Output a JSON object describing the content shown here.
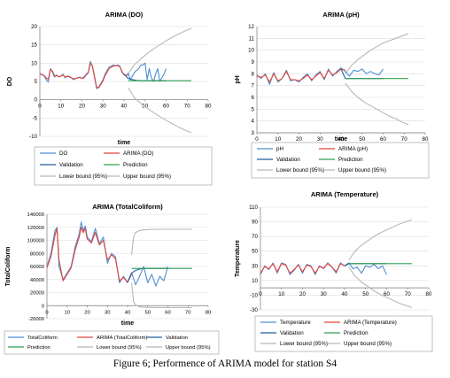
{
  "caption": "Figure 6;  Performence of ARIMA model for station S4",
  "colors": {
    "observed": "#4f8fd0",
    "arima": "#e0433d",
    "validation": "#1f5f9f",
    "prediction": "#2fa050",
    "bounds": "#b8b8b8",
    "grid": "#dcdcdc"
  },
  "chart_data": [
    {
      "type": "line",
      "title": "ARIMA (DO)",
      "xlabel": "time",
      "ylabel": "DO",
      "xlim": [
        0,
        80
      ],
      "ylim": [
        -10,
        20
      ],
      "xticks": [
        "0",
        "10",
        "20",
        "30",
        "40",
        "50",
        "60",
        "70",
        "80"
      ],
      "yticks": [
        "-10",
        "-5",
        "0",
        "5",
        "10",
        "15",
        "20"
      ],
      "legend": [
        "DO",
        "ARIMA (DO)",
        "Validation",
        "Prediction",
        "Lower bound (95%)",
        "Upper bound (95%)"
      ],
      "series": [
        {
          "name": "DO",
          "x": [
            0,
            1,
            2,
            3,
            4,
            5,
            6,
            7,
            8,
            9,
            10,
            11,
            12,
            13,
            14,
            15,
            16,
            17,
            18,
            19,
            20,
            21,
            22,
            23,
            24,
            25,
            26,
            27,
            28,
            29,
            30,
            31,
            32,
            33,
            34,
            35,
            36,
            37,
            38,
            39,
            40,
            41,
            42,
            43,
            44,
            45,
            46,
            47,
            48,
            49,
            50,
            51,
            52,
            53,
            54,
            55,
            56,
            57,
            58,
            59,
            60
          ],
          "y": [
            7.2,
            6.8,
            6.5,
            5.5,
            4.8,
            8.5,
            7.5,
            6.2,
            6.8,
            6.2,
            6.5,
            7.0,
            6.0,
            6.5,
            6.2,
            6.0,
            5.5,
            5.8,
            6.0,
            6.2,
            5.8,
            6.2,
            7.0,
            7.5,
            10.5,
            9.0,
            6.0,
            3.0,
            3.5,
            4.5,
            5.5,
            7.0,
            8.0,
            9.0,
            9.2,
            9.5,
            9.3,
            9.5,
            9.2,
            7.5,
            7.0,
            6.5,
            7.2,
            5.5,
            6.5,
            7.5,
            8.0,
            8.5,
            9.5,
            9.5,
            10.0,
            5.5,
            8.5,
            6.0,
            5.0,
            7.0,
            8.5,
            5.0,
            6.0,
            7.0,
            8.5
          ]
        },
        {
          "name": "ARIMA (DO)",
          "x": [
            0,
            1,
            2,
            3,
            4,
            5,
            6,
            7,
            8,
            9,
            10,
            11,
            12,
            13,
            14,
            15,
            16,
            17,
            18,
            19,
            20,
            21,
            22,
            23,
            24,
            25,
            26,
            27,
            28,
            29,
            30,
            31,
            32,
            33,
            34,
            35,
            36,
            37,
            38,
            39,
            40,
            41,
            42
          ],
          "y": [
            7.0,
            6.9,
            6.6,
            6.0,
            5.6,
            8.3,
            7.8,
            6.5,
            6.6,
            6.3,
            6.4,
            6.8,
            6.2,
            6.4,
            6.3,
            6.0,
            5.7,
            5.8,
            6.0,
            6.1,
            5.9,
            6.0,
            6.8,
            7.3,
            10.0,
            9.2,
            6.3,
            3.4,
            3.3,
            4.2,
            5.2,
            6.6,
            7.6,
            8.6,
            8.9,
            9.2,
            9.3,
            9.3,
            9.0,
            7.8,
            6.8,
            6.6,
            6.9
          ]
        },
        {
          "name": "Validation",
          "x": [
            40,
            42,
            44,
            46,
            48,
            50,
            52,
            54,
            56,
            58,
            60
          ],
          "y": [
            7.0,
            5.8,
            5.5,
            5.3,
            5.2,
            5.2,
            5.2,
            5.2,
            5.2,
            5.2,
            5.2
          ]
        },
        {
          "name": "Prediction",
          "x": [
            42,
            72
          ],
          "y": [
            5.2,
            5.2
          ]
        },
        {
          "name": "Lower bound (95%)",
          "x": [
            42,
            45,
            48,
            51,
            54,
            57,
            60,
            63,
            66,
            69,
            72
          ],
          "y": [
            3.2,
            0.5,
            -1.0,
            -2.3,
            -3.5,
            -4.6,
            -5.6,
            -6.6,
            -7.5,
            -8.3,
            -9.0
          ]
        },
        {
          "name": "Upper bound (95%)",
          "x": [
            42,
            45,
            48,
            51,
            54,
            57,
            60,
            63,
            66,
            69,
            72
          ],
          "y": [
            7.2,
            9.6,
            11.2,
            12.6,
            13.9,
            15.0,
            16.1,
            17.1,
            18.0,
            18.8,
            19.5
          ]
        }
      ]
    },
    {
      "type": "line",
      "title": "ARIMA (pH)",
      "xlabel": "time",
      "ylabel": "pH",
      "xlim": [
        0,
        80
      ],
      "ylim": [
        3,
        12
      ],
      "xticks": [
        "0",
        "10",
        "20",
        "30",
        "40",
        "50",
        "60",
        "70",
        "80"
      ],
      "yticks": [
        "3",
        "4",
        "5",
        "6",
        "7",
        "8",
        "9",
        "10",
        "11",
        "12"
      ],
      "legend": [
        "pH",
        "ARIMA (pH)",
        "Validation",
        "Prediction",
        "Lower bound (95%)",
        "Upper bound (95%)"
      ],
      "series": [
        {
          "name": "pH",
          "x": [
            0,
            2,
            4,
            6,
            8,
            10,
            12,
            14,
            16,
            18,
            20,
            22,
            24,
            26,
            28,
            30,
            32,
            34,
            36,
            38,
            40,
            42,
            44,
            46,
            48,
            50,
            52,
            54,
            56,
            58,
            60
          ],
          "y": [
            7.9,
            7.6,
            8.0,
            7.1,
            8.1,
            7.3,
            7.6,
            8.3,
            7.4,
            7.5,
            7.3,
            7.7,
            8.0,
            7.4,
            7.9,
            8.2,
            7.5,
            8.4,
            7.8,
            8.2,
            8.5,
            8.2,
            7.8,
            8.3,
            8.2,
            8.4,
            8.0,
            8.2,
            8.0,
            7.9,
            8.4
          ]
        },
        {
          "name": "ARIMA (pH)",
          "x": [
            0,
            2,
            4,
            6,
            8,
            10,
            12,
            14,
            16,
            18,
            20,
            22,
            24,
            26,
            28,
            30,
            32,
            34,
            36,
            38,
            40,
            42
          ],
          "y": [
            7.8,
            7.7,
            7.9,
            7.3,
            8.0,
            7.4,
            7.6,
            8.2,
            7.5,
            7.5,
            7.4,
            7.6,
            7.9,
            7.5,
            7.8,
            8.1,
            7.6,
            8.3,
            7.9,
            8.1,
            8.4,
            8.3
          ]
        },
        {
          "name": "Validation",
          "x": [
            40,
            42,
            44,
            46,
            48,
            50,
            52,
            54,
            56,
            58,
            60
          ],
          "y": [
            8.4,
            7.6,
            7.6,
            7.6,
            7.6,
            7.6,
            7.6,
            7.6,
            7.6,
            7.6,
            7.6
          ]
        },
        {
          "name": "Prediction",
          "x": [
            42,
            72
          ],
          "y": [
            7.6,
            7.6
          ]
        },
        {
          "name": "Lower bound (95%)",
          "x": [
            42,
            45,
            48,
            51,
            54,
            57,
            60,
            63,
            66,
            69,
            72
          ],
          "y": [
            7.2,
            6.5,
            6.0,
            5.6,
            5.3,
            5.0,
            4.7,
            4.4,
            4.2,
            3.9,
            3.7
          ]
        },
        {
          "name": "Upper bound (95%)",
          "x": [
            42,
            45,
            48,
            51,
            54,
            57,
            60,
            63,
            66,
            69,
            72
          ],
          "y": [
            8.0,
            8.7,
            9.2,
            9.6,
            10.0,
            10.3,
            10.6,
            10.8,
            11.0,
            11.2,
            11.4
          ]
        }
      ]
    },
    {
      "type": "line",
      "title": "ARIMA (TotalColiform)",
      "xlabel": "time",
      "ylabel": "TotalColiform",
      "xlim": [
        0,
        80
      ],
      "ylim": [
        -20000,
        140000
      ],
      "xticks": [
        "0",
        "10",
        "20",
        "30",
        "40",
        "50",
        "60",
        "70",
        "80"
      ],
      "yticks": [
        "-20000",
        "0",
        "20000",
        "40000",
        "60000",
        "80000",
        "100000",
        "120000",
        "140000"
      ],
      "legend": [
        "TotalColiform",
        "ARIMA (TotalColiform)",
        "Validation",
        "Prediction",
        "Lower bound (95%)",
        "Upper bound (95%)"
      ],
      "series": [
        {
          "name": "TotalColiform",
          "x": [
            0,
            2,
            4,
            5,
            6,
            8,
            10,
            12,
            14,
            16,
            17,
            18,
            19,
            20,
            22,
            24,
            26,
            28,
            30,
            32,
            34,
            36,
            38,
            40,
            42,
            44,
            46,
            48,
            50,
            52,
            54,
            56,
            58,
            60
          ],
          "y": [
            60000,
            80000,
            115000,
            120000,
            60000,
            40000,
            50000,
            60000,
            90000,
            110000,
            128000,
            115000,
            122000,
            105000,
            98000,
            118000,
            95000,
            105000,
            65000,
            80000,
            75000,
            35000,
            45000,
            35000,
            50000,
            32000,
            45000,
            60000,
            35000,
            48000,
            30000,
            45000,
            38000,
            60000
          ]
        },
        {
          "name": "ARIMA (TotalColiform)",
          "x": [
            0,
            2,
            4,
            5,
            6,
            8,
            10,
            12,
            14,
            16,
            17,
            18,
            19,
            20,
            22,
            24,
            26,
            28,
            30,
            32,
            34,
            36,
            38,
            40,
            42
          ],
          "y": [
            58000,
            75000,
            108000,
            118000,
            70000,
            38000,
            48000,
            58000,
            85000,
            105000,
            120000,
            112000,
            118000,
            102000,
            96000,
            112000,
            93000,
            100000,
            70000,
            78000,
            72000,
            38000,
            43000,
            36000,
            48000
          ]
        },
        {
          "name": "Validation",
          "x": [
            40,
            42,
            44,
            46,
            48,
            50,
            52,
            54,
            56,
            58,
            60
          ],
          "y": [
            36000,
            50000,
            54000,
            56000,
            57000,
            57000,
            57000,
            57000,
            57000,
            57000,
            57000
          ]
        },
        {
          "name": "Prediction",
          "x": [
            42,
            72
          ],
          "y": [
            57000,
            57000
          ]
        },
        {
          "name": "Lower bound (95%)",
          "x": [
            42,
            43,
            44,
            46,
            48,
            50,
            55,
            60,
            65,
            72
          ],
          "y": [
            35000,
            6000,
            1000,
            -2000,
            -2500,
            -2800,
            -3000,
            -3000,
            -3000,
            -3000
          ]
        },
        {
          "name": "Upper bound (95%)",
          "x": [
            42,
            43,
            44,
            46,
            48,
            50,
            55,
            60,
            65,
            72
          ],
          "y": [
            78000,
            105000,
            112000,
            115000,
            116000,
            116500,
            117000,
            117000,
            117000,
            117000
          ]
        }
      ]
    },
    {
      "type": "line",
      "title": "ARIMA (Temperature)",
      "xlabel": "",
      "ylabel": "Temperature",
      "xlim": [
        0,
        80
      ],
      "ylim": [
        -30,
        110
      ],
      "xticks": [
        "0",
        "10",
        "20",
        "30",
        "40",
        "50",
        "60",
        "70",
        "80"
      ],
      "yticks": [
        "-30",
        "-10",
        "10",
        "30",
        "50",
        "70",
        "90",
        "110"
      ],
      "legend": [
        "Temperature",
        "ARIMA (Temperature)",
        "Validation",
        "Prediction",
        "Lower bound (95%)",
        "Upper bound (95%)"
      ],
      "series": [
        {
          "name": "Temperature",
          "x": [
            0,
            2,
            4,
            6,
            8,
            10,
            12,
            14,
            16,
            18,
            20,
            22,
            24,
            26,
            28,
            30,
            32,
            34,
            36,
            38,
            40,
            42,
            44,
            46,
            48,
            50,
            52,
            54,
            56,
            58,
            60
          ],
          "y": [
            18,
            30,
            25,
            34,
            20,
            34,
            32,
            18,
            24,
            32,
            20,
            32,
            30,
            18,
            30,
            26,
            34,
            28,
            20,
            34,
            30,
            34,
            26,
            28,
            20,
            30,
            28,
            32,
            26,
            30,
            18
          ]
        },
        {
          "name": "ARIMA (Temperature)",
          "x": [
            0,
            2,
            4,
            6,
            8,
            10,
            12,
            14,
            16,
            18,
            20,
            22,
            24,
            26,
            28,
            30,
            32,
            34,
            36,
            38,
            40,
            42
          ],
          "y": [
            20,
            29,
            26,
            33,
            22,
            33,
            31,
            20,
            25,
            31,
            22,
            31,
            29,
            20,
            29,
            27,
            33,
            28,
            22,
            33,
            30,
            33
          ]
        },
        {
          "name": "Validation",
          "x": [
            40,
            42,
            44,
            46,
            48,
            50,
            52,
            54,
            56,
            58,
            60
          ],
          "y": [
            30,
            33,
            33,
            33,
            33,
            33,
            33,
            33,
            33,
            33,
            33
          ]
        },
        {
          "name": "Prediction",
          "x": [
            42,
            72
          ],
          "y": [
            33,
            33
          ]
        },
        {
          "name": "Lower bound (95%)",
          "x": [
            42,
            45,
            48,
            51,
            54,
            57,
            60,
            63,
            66,
            69,
            72
          ],
          "y": [
            28,
            16,
            8,
            2,
            -4,
            -9,
            -13,
            -17,
            -21,
            -24,
            -27
          ]
        },
        {
          "name": "Upper bound (95%)",
          "x": [
            42,
            45,
            48,
            51,
            54,
            57,
            60,
            63,
            66,
            69,
            72
          ],
          "y": [
            38,
            50,
            58,
            64,
            70,
            75,
            79,
            83,
            87,
            90,
            93
          ]
        }
      ]
    }
  ]
}
